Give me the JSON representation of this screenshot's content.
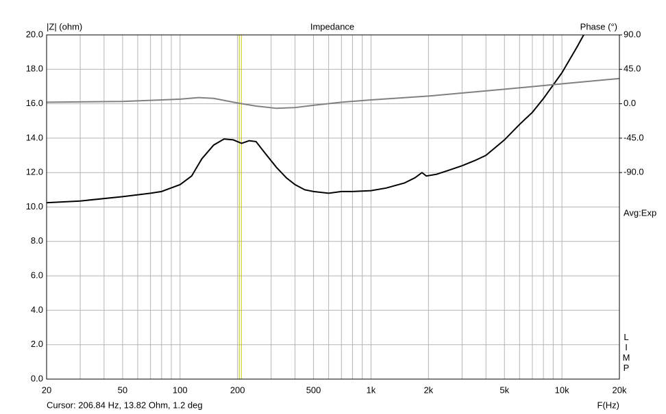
{
  "chart_data": {
    "type": "line",
    "title": "Impedance",
    "ylabel": "|Z| (ohm)",
    "y2label": "Phase (°)",
    "xlabel": "F(Hz)",
    "avg_note": "Avg:Exp",
    "side_label": "LIMP",
    "cursor": {
      "label": "Cursor: 206.84 Hz, 13.82 Ohm, 1.2 deg",
      "x": 206.84,
      "color": "#c8c800"
    },
    "xscale": "log",
    "grid": true,
    "grid_color": "#b4b4b4",
    "xlim": [
      20,
      20000
    ],
    "xticks": [
      20,
      50,
      100,
      200,
      500,
      {
        "value": 1000,
        "label": "1k"
      },
      {
        "value": 2000,
        "label": "2k"
      },
      {
        "value": 5000,
        "label": "5k"
      },
      {
        "value": 10000,
        "label": "10k"
      },
      {
        "value": 20000,
        "label": "20k"
      }
    ],
    "xminor": [
      30,
      40,
      60,
      70,
      80,
      90,
      300,
      400,
      600,
      700,
      800,
      900,
      3000,
      4000,
      6000,
      7000,
      8000,
      9000
    ],
    "ylim": [
      0,
      20
    ],
    "yticks": [
      {
        "value": 0,
        "label": "0.0"
      },
      {
        "value": 2,
        "label": "2.0"
      },
      {
        "value": 4,
        "label": "4.0"
      },
      {
        "value": 6,
        "label": "6.0"
      },
      {
        "value": 8,
        "label": "8.0"
      },
      {
        "value": 10,
        "label": "10.0"
      },
      {
        "value": 12,
        "label": "12.0"
      },
      {
        "value": 14,
        "label": "14.0"
      },
      {
        "value": 16,
        "label": "16.0"
      },
      {
        "value": 18,
        "label": "18.0"
      },
      {
        "value": 20,
        "label": "20.0"
      }
    ],
    "y2lim": [
      -360,
      90
    ],
    "y2ticks": [
      {
        "value": 90,
        "label": "90.0"
      },
      {
        "value": 45,
        "label": "45.0"
      },
      {
        "value": 0,
        "label": "0.0"
      },
      {
        "value": -45,
        "label": "-45.0"
      },
      {
        "value": -90,
        "label": "-90.0"
      }
    ],
    "series": [
      {
        "name": "Impedance",
        "color": "#000000",
        "x": [
          20,
          30,
          50,
          70,
          80,
          100,
          115,
          130,
          150,
          170,
          190,
          210,
          230,
          250,
          280,
          320,
          360,
          400,
          450,
          500,
          600,
          700,
          800,
          1000,
          1200,
          1500,
          1700,
          1850,
          1950,
          2200,
          2500,
          3000,
          3500,
          4000,
          5000,
          6000,
          7000,
          8000,
          10000,
          12000,
          13000
        ],
        "values": [
          10.25,
          10.35,
          10.6,
          10.8,
          10.9,
          11.3,
          11.8,
          12.8,
          13.6,
          13.95,
          13.9,
          13.7,
          13.85,
          13.8,
          13.1,
          12.3,
          11.7,
          11.3,
          11.0,
          10.9,
          10.8,
          10.9,
          10.9,
          10.95,
          11.1,
          11.4,
          11.7,
          12.0,
          11.8,
          11.9,
          12.1,
          12.4,
          12.7,
          13.0,
          13.9,
          14.8,
          15.5,
          16.3,
          17.8,
          19.3,
          20.0
        ]
      },
      {
        "name": "Phase",
        "color": "#808080",
        "axis": "y2",
        "x": [
          20,
          50,
          100,
          125,
          150,
          200,
          250,
          320,
          400,
          500,
          700,
          1000,
          2000,
          5000,
          10000,
          20000
        ],
        "values": [
          2,
          3,
          6,
          8,
          7,
          1,
          -3,
          -6,
          -5,
          -2,
          2,
          5,
          10,
          19,
          26,
          33
        ]
      }
    ]
  }
}
